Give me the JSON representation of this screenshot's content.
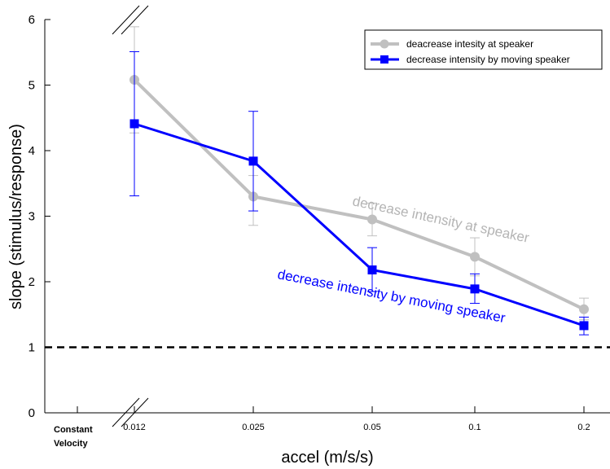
{
  "chart_data": {
    "type": "line",
    "categories": [
      "0.012",
      "0.025",
      "0.05",
      "0.1",
      "0.2"
    ],
    "extra_category": "Constant Velocity",
    "xlabel": "accel (m/s/s)",
    "ylabel": "slope (stimulus/response)",
    "ylim": [
      0,
      6
    ],
    "yticks": [
      "0",
      "1",
      "2",
      "3",
      "4",
      "5",
      "6"
    ],
    "reference_line": {
      "y": 1,
      "style": "dashed",
      "color": "#000000"
    },
    "legend_position": "top-right",
    "series": [
      {
        "name": "deacrease intesity at speaker",
        "color": "#c0c0c0",
        "marker": "circle",
        "values": [
          5.08,
          3.3,
          2.95,
          2.38,
          1.58
        ],
        "err_low": [
          4.27,
          2.86,
          2.7,
          2.09,
          1.42
        ],
        "err_high": [
          5.89,
          3.62,
          3.2,
          2.67,
          1.75
        ],
        "annotation": "decrease intensity at speaker"
      },
      {
        "name": "decrease intensity by moving speaker",
        "color": "#0000ff",
        "marker": "square",
        "values": [
          4.41,
          3.84,
          2.18,
          1.89,
          1.33
        ],
        "err_low": [
          3.31,
          3.08,
          1.85,
          1.67,
          1.19
        ],
        "err_high": [
          5.51,
          4.6,
          2.52,
          2.12,
          1.46
        ],
        "annotation": "decrease intensity by moving speaker"
      }
    ]
  }
}
